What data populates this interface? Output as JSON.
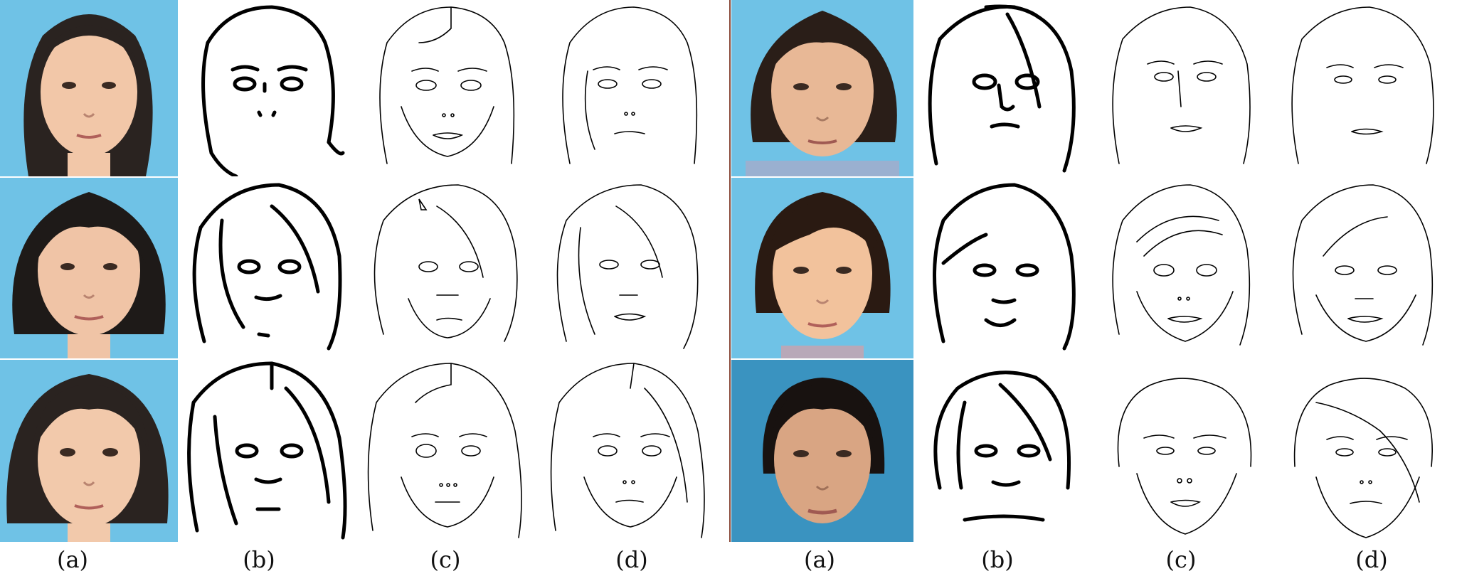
{
  "panels": {
    "left": {
      "labels": [
        "(a)",
        "(b)",
        "(c)",
        "(d)"
      ]
    },
    "right": {
      "labels": [
        "(a)",
        "(b)",
        "(c)",
        "(d)"
      ]
    }
  },
  "colors": {
    "background_blue": "#6fc2e6",
    "background_blue_dark": "#3a93c0",
    "skin": "#f2c7a8",
    "hair": "#1e1a18",
    "divider": "#8a4a3a"
  }
}
